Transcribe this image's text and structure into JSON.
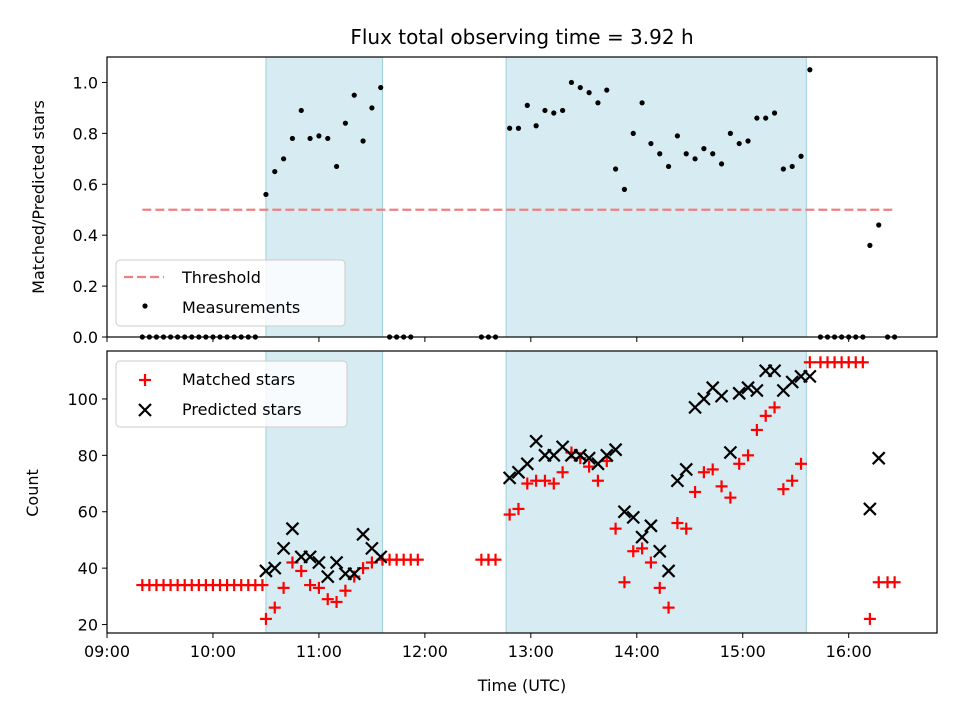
{
  "chart_data": [
    {
      "type": "scatter",
      "title": "Flux total observing time = 3.92 h",
      "ylabel": "Matched/Predicted stars",
      "xlim": [
        "09:00",
        "16:50"
      ],
      "ylim": [
        0,
        1.1
      ],
      "x_ticks": [
        "09:00",
        "10:00",
        "11:00",
        "12:00",
        "13:00",
        "14:00",
        "15:00",
        "16:00"
      ],
      "y_ticks": [
        "0.0",
        "0.2",
        "0.4",
        "0.6",
        "0.8",
        "1.0"
      ],
      "shaded_intervals": [
        [
          "10:30",
          "11:36"
        ],
        [
          "12:46",
          "15:36"
        ]
      ],
      "threshold": {
        "name": "Threshold",
        "y": 0.5,
        "x_range": [
          "09:20",
          "16:26"
        ],
        "color": "#f08080"
      },
      "legend": {
        "position": "lower-left",
        "entries": [
          "Threshold",
          "Measurements"
        ]
      },
      "series": [
        {
          "name": "Measurements",
          "color": "#000000",
          "points": [
            [
              "09:20",
              0
            ],
            [
              "09:24",
              0
            ],
            [
              "09:28",
              0
            ],
            [
              "09:32",
              0
            ],
            [
              "09:36",
              0
            ],
            [
              "09:40",
              0
            ],
            [
              "09:44",
              0
            ],
            [
              "09:48",
              0
            ],
            [
              "09:52",
              0
            ],
            [
              "09:56",
              0
            ],
            [
              "10:00",
              0
            ],
            [
              "10:04",
              0
            ],
            [
              "10:08",
              0
            ],
            [
              "10:12",
              0
            ],
            [
              "10:16",
              0
            ],
            [
              "10:20",
              0
            ],
            [
              "10:24",
              0
            ],
            [
              "10:30",
              0.56
            ],
            [
              "10:35",
              0.65
            ],
            [
              "10:40",
              0.7
            ],
            [
              "10:45",
              0.78
            ],
            [
              "10:50",
              0.89
            ],
            [
              "10:55",
              0.78
            ],
            [
              "11:00",
              0.79
            ],
            [
              "11:05",
              0.78
            ],
            [
              "11:10",
              0.67
            ],
            [
              "11:15",
              0.84
            ],
            [
              "11:20",
              0.95
            ],
            [
              "11:25",
              0.77
            ],
            [
              "11:30",
              0.9
            ],
            [
              "11:35",
              0.98
            ],
            [
              "11:40",
              0
            ],
            [
              "11:44",
              0
            ],
            [
              "11:48",
              0
            ],
            [
              "11:52",
              0
            ],
            [
              "12:32",
              0
            ],
            [
              "12:36",
              0
            ],
            [
              "12:40",
              0
            ],
            [
              "12:48",
              0.82
            ],
            [
              "12:53",
              0.82
            ],
            [
              "12:58",
              0.91
            ],
            [
              "13:03",
              0.83
            ],
            [
              "13:08",
              0.89
            ],
            [
              "13:13",
              0.88
            ],
            [
              "13:18",
              0.89
            ],
            [
              "13:23",
              1.0
            ],
            [
              "13:28",
              0.98
            ],
            [
              "13:33",
              0.96
            ],
            [
              "13:38",
              0.92
            ],
            [
              "13:43",
              0.97
            ],
            [
              "13:48",
              0.66
            ],
            [
              "13:53",
              0.58
            ],
            [
              "13:58",
              0.8
            ],
            [
              "14:03",
              0.92
            ],
            [
              "14:08",
              0.76
            ],
            [
              "14:13",
              0.72
            ],
            [
              "14:18",
              0.67
            ],
            [
              "14:23",
              0.79
            ],
            [
              "14:28",
              0.72
            ],
            [
              "14:33",
              0.7
            ],
            [
              "14:38",
              0.74
            ],
            [
              "14:43",
              0.72
            ],
            [
              "14:48",
              0.68
            ],
            [
              "14:53",
              0.8
            ],
            [
              "14:58",
              0.76
            ],
            [
              "15:03",
              0.77
            ],
            [
              "15:08",
              0.86
            ],
            [
              "15:13",
              0.86
            ],
            [
              "15:18",
              0.88
            ],
            [
              "15:23",
              0.66
            ],
            [
              "15:28",
              0.67
            ],
            [
              "15:33",
              0.71
            ],
            [
              "15:38",
              1.05
            ],
            [
              "15:44",
              0
            ],
            [
              "15:48",
              0
            ],
            [
              "15:52",
              0
            ],
            [
              "15:56",
              0
            ],
            [
              "16:00",
              0
            ],
            [
              "16:04",
              0
            ],
            [
              "16:08",
              0
            ],
            [
              "16:12",
              0.36
            ],
            [
              "16:17",
              0.44
            ],
            [
              "16:22",
              0
            ],
            [
              "16:26",
              0
            ]
          ]
        }
      ]
    },
    {
      "type": "scatter",
      "xlabel": "Time (UTC)",
      "ylabel": "Count",
      "xlim": [
        "09:00",
        "16:50"
      ],
      "ylim": [
        17,
        117
      ],
      "x_ticks": [
        "09:00",
        "10:00",
        "11:00",
        "12:00",
        "13:00",
        "14:00",
        "15:00",
        "16:00"
      ],
      "y_ticks": [
        "20",
        "40",
        "60",
        "80",
        "100"
      ],
      "shaded_intervals": [
        [
          "10:30",
          "11:36"
        ],
        [
          "12:46",
          "15:36"
        ]
      ],
      "legend": {
        "position": "upper-left",
        "entries": [
          "Matched stars",
          "Predicted stars"
        ]
      },
      "series": [
        {
          "name": "Matched stars",
          "marker": "+",
          "color": "#ff0000",
          "points": [
            [
              "09:20",
              34
            ],
            [
              "09:24",
              34
            ],
            [
              "09:28",
              34
            ],
            [
              "09:32",
              34
            ],
            [
              "09:36",
              34
            ],
            [
              "09:40",
              34
            ],
            [
              "09:44",
              34
            ],
            [
              "09:48",
              34
            ],
            [
              "09:52",
              34
            ],
            [
              "09:56",
              34
            ],
            [
              "10:00",
              34
            ],
            [
              "10:04",
              34
            ],
            [
              "10:08",
              34
            ],
            [
              "10:12",
              34
            ],
            [
              "10:16",
              34
            ],
            [
              "10:20",
              34
            ],
            [
              "10:24",
              34
            ],
            [
              "10:28",
              34
            ],
            [
              "10:30",
              22
            ],
            [
              "10:35",
              26
            ],
            [
              "10:40",
              33
            ],
            [
              "10:45",
              42
            ],
            [
              "10:50",
              39
            ],
            [
              "10:55",
              34
            ],
            [
              "11:00",
              33
            ],
            [
              "11:05",
              29
            ],
            [
              "11:10",
              28
            ],
            [
              "11:15",
              32
            ],
            [
              "11:20",
              37
            ],
            [
              "11:25",
              40
            ],
            [
              "11:30",
              42
            ],
            [
              "11:36",
              43
            ],
            [
              "11:40",
              43
            ],
            [
              "11:44",
              43
            ],
            [
              "11:48",
              43
            ],
            [
              "11:52",
              43
            ],
            [
              "11:56",
              43
            ],
            [
              "12:32",
              43
            ],
            [
              "12:36",
              43
            ],
            [
              "12:40",
              43
            ],
            [
              "12:48",
              59
            ],
            [
              "12:53",
              61
            ],
            [
              "12:58",
              70
            ],
            [
              "13:03",
              71
            ],
            [
              "13:08",
              71
            ],
            [
              "13:13",
              70
            ],
            [
              "13:18",
              74
            ],
            [
              "13:23",
              81
            ],
            [
              "13:28",
              79
            ],
            [
              "13:33",
              76
            ],
            [
              "13:38",
              71
            ],
            [
              "13:43",
              78
            ],
            [
              "13:48",
              54
            ],
            [
              "13:53",
              35
            ],
            [
              "13:58",
              46
            ],
            [
              "14:03",
              47
            ],
            [
              "14:08",
              42
            ],
            [
              "14:13",
              33
            ],
            [
              "14:18",
              26
            ],
            [
              "14:23",
              56
            ],
            [
              "14:28",
              54
            ],
            [
              "14:33",
              67
            ],
            [
              "14:38",
              74
            ],
            [
              "14:43",
              75
            ],
            [
              "14:48",
              69
            ],
            [
              "14:53",
              65
            ],
            [
              "14:58",
              77
            ],
            [
              "15:03",
              80
            ],
            [
              "15:08",
              89
            ],
            [
              "15:13",
              94
            ],
            [
              "15:18",
              97
            ],
            [
              "15:23",
              68
            ],
            [
              "15:28",
              71
            ],
            [
              "15:33",
              77
            ],
            [
              "15:38",
              113
            ],
            [
              "15:44",
              113
            ],
            [
              "15:48",
              113
            ],
            [
              "15:52",
              113
            ],
            [
              "15:56",
              113
            ],
            [
              "16:00",
              113
            ],
            [
              "16:04",
              113
            ],
            [
              "16:08",
              113
            ],
            [
              "16:12",
              22
            ],
            [
              "16:17",
              35
            ],
            [
              "16:22",
              35
            ],
            [
              "16:26",
              35
            ]
          ]
        },
        {
          "name": "Predicted stars",
          "marker": "x",
          "color": "#000000",
          "points": [
            [
              "10:30",
              39
            ],
            [
              "10:35",
              40
            ],
            [
              "10:40",
              47
            ],
            [
              "10:45",
              54
            ],
            [
              "10:50",
              44
            ],
            [
              "10:55",
              44
            ],
            [
              "11:00",
              42
            ],
            [
              "11:05",
              37
            ],
            [
              "11:10",
              42
            ],
            [
              "11:15",
              38
            ],
            [
              "11:20",
              38
            ],
            [
              "11:25",
              52
            ],
            [
              "11:30",
              47
            ],
            [
              "11:35",
              44
            ],
            [
              "12:48",
              72
            ],
            [
              "12:53",
              74
            ],
            [
              "12:58",
              77
            ],
            [
              "13:03",
              85
            ],
            [
              "13:08",
              80
            ],
            [
              "13:13",
              80
            ],
            [
              "13:18",
              83
            ],
            [
              "13:23",
              80
            ],
            [
              "13:28",
              80
            ],
            [
              "13:33",
              79
            ],
            [
              "13:38",
              77
            ],
            [
              "13:43",
              80
            ],
            [
              "13:48",
              82
            ],
            [
              "13:53",
              60
            ],
            [
              "13:58",
              58
            ],
            [
              "14:03",
              51
            ],
            [
              "14:08",
              55
            ],
            [
              "14:13",
              46
            ],
            [
              "14:18",
              39
            ],
            [
              "14:23",
              71
            ],
            [
              "14:28",
              75
            ],
            [
              "14:33",
              97
            ],
            [
              "14:38",
              100
            ],
            [
              "14:43",
              104
            ],
            [
              "14:48",
              101
            ],
            [
              "14:53",
              81
            ],
            [
              "14:58",
              102
            ],
            [
              "15:03",
              104
            ],
            [
              "15:08",
              103
            ],
            [
              "15:13",
              110
            ],
            [
              "15:18",
              110
            ],
            [
              "15:23",
              103
            ],
            [
              "15:28",
              106
            ],
            [
              "15:33",
              108
            ],
            [
              "15:38",
              108
            ],
            [
              "16:12",
              61
            ],
            [
              "16:17",
              79
            ]
          ]
        }
      ]
    }
  ]
}
